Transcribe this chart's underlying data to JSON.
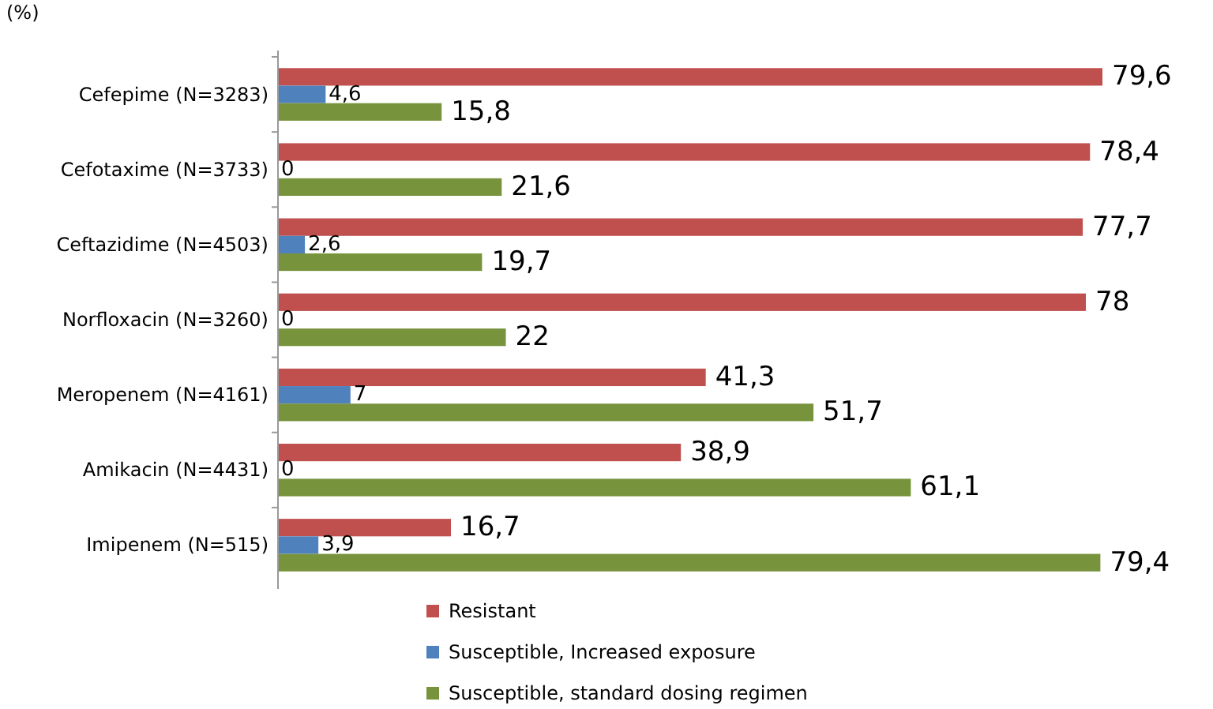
{
  "chart_data": {
    "type": "bar",
    "orientation": "horizontal",
    "ylabel": "(%)",
    "categories": [
      "Cefepime (N=3283)",
      "Cefotaxime (N=3733)",
      "Ceftazidime (N=4503)",
      "Norfloxacin (N=3260)",
      "Meropenem (N=4161)",
      "Amikacin (N=4431)",
      "Imipenem (N=515)"
    ],
    "series": [
      {
        "name": "Resistant",
        "color": "#c0504d",
        "values": [
          79.6,
          78.4,
          77.7,
          78,
          41.3,
          38.9,
          16.7
        ],
        "value_labels": [
          "79,6",
          "78,4",
          "77,7",
          "78",
          "41,3",
          "38,9",
          "16,7"
        ]
      },
      {
        "name": "Susceptible, Increased exposure",
        "color": "#4f81bd",
        "values": [
          4.6,
          0,
          2.6,
          0,
          7,
          0,
          3.9
        ],
        "value_labels": [
          "4,6",
          "0",
          "2,6",
          "0",
          "7",
          "0",
          "3,9"
        ]
      },
      {
        "name": "Susceptible, standard dosing regimen",
        "color": "#77933c",
        "values": [
          15.8,
          21.6,
          19.7,
          22,
          51.7,
          61.1,
          79.4
        ],
        "value_labels": [
          "15,8",
          "21,6",
          "19,7",
          "22",
          "51,7",
          "61,1",
          "79,4"
        ]
      }
    ],
    "legend": "bottom",
    "grid": false
  }
}
